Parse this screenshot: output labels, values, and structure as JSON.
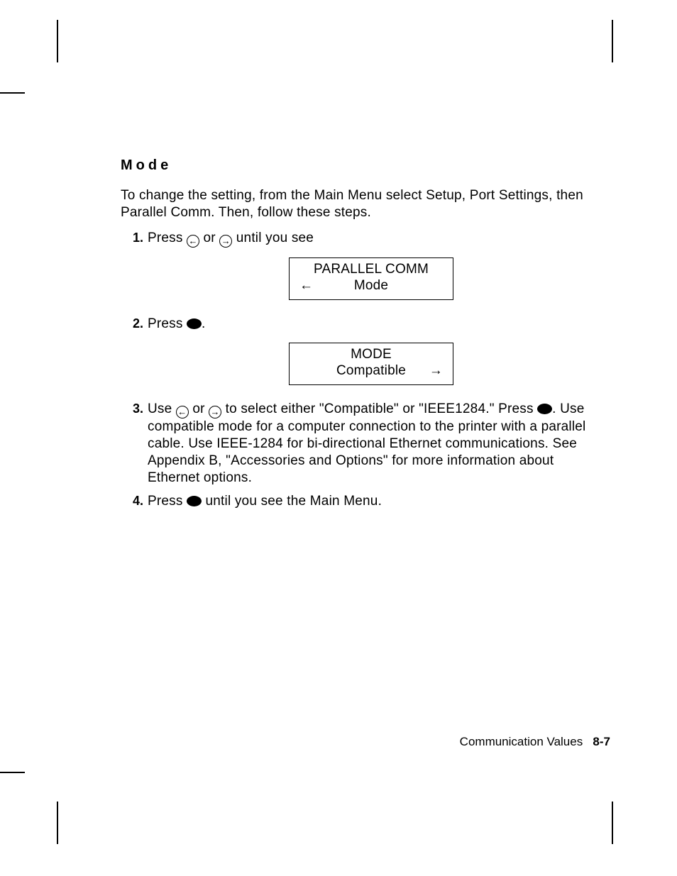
{
  "heading": "Mode",
  "intro": "To change the setting, from the Main Menu select Setup, Port Settings, then Parallel Comm.  Then, follow these steps.",
  "steps": [
    {
      "num": "1.",
      "segments": [
        {
          "t": "text",
          "v": "Press "
        },
        {
          "t": "circle",
          "v": "←"
        },
        {
          "t": "text",
          "v": " or "
        },
        {
          "t": "circle",
          "v": "→"
        },
        {
          "t": "text",
          "v": " until you see"
        }
      ],
      "lcd": {
        "line1": "PARALLEL COMM",
        "line2": "Mode",
        "arrow_left": "←",
        "arrow_right": ""
      }
    },
    {
      "num": "2.",
      "segments": [
        {
          "t": "text",
          "v": "Press "
        },
        {
          "t": "dot"
        },
        {
          "t": "text",
          "v": "."
        }
      ],
      "lcd": {
        "line1": "MODE",
        "line2": "Compatible",
        "arrow_left": "",
        "arrow_right": "→"
      }
    },
    {
      "num": "3.",
      "segments": [
        {
          "t": "text",
          "v": "Use "
        },
        {
          "t": "circle",
          "v": "←"
        },
        {
          "t": "text",
          "v": " or "
        },
        {
          "t": "circle",
          "v": "→"
        },
        {
          "t": "text",
          "v": " to select either \"Compatible\" or \"IEEE1284.\" Press "
        },
        {
          "t": "dot"
        },
        {
          "t": "text",
          "v": ".  Use compatible mode for a computer connection to the printer with a parallel cable.  Use IEEE-1284 for bi-directional Ethernet communications.  See Appendix B, \"Accessories and Options\" for more information about Ethernet options."
        }
      ]
    },
    {
      "num": "4.",
      "segments": [
        {
          "t": "text",
          "v": "Press "
        },
        {
          "t": "dot"
        },
        {
          "t": "text",
          "v": " until you see the Main Menu."
        }
      ]
    }
  ],
  "footer": {
    "label": "Communication Values",
    "page": "8-7"
  }
}
